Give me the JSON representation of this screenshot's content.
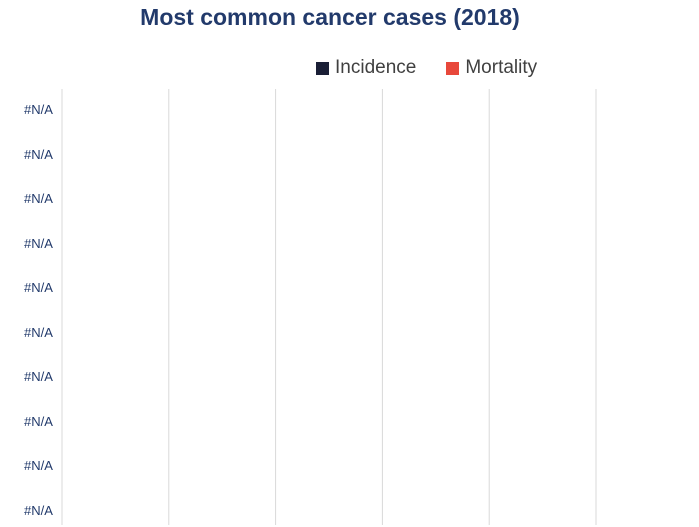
{
  "chart_data": {
    "type": "bar",
    "orientation": "horizontal",
    "title": "Most common cancer cases (2018)",
    "categories": [
      "#N/A",
      "#N/A",
      "#N/A",
      "#N/A",
      "#N/A",
      "#N/A",
      "#N/A",
      "#N/A",
      "#N/A",
      "#N/A"
    ],
    "series": [
      {
        "name": "Incidence",
        "color": "#1a1f36",
        "values": [
          null,
          null,
          null,
          null,
          null,
          null,
          null,
          null,
          null,
          null
        ]
      },
      {
        "name": "Mortality",
        "color": "#e8483b",
        "values": [
          null,
          null,
          null,
          null,
          null,
          null,
          null,
          null,
          null,
          null
        ]
      }
    ],
    "x_gridlines": 6,
    "grid": true,
    "legend": "top-right"
  }
}
